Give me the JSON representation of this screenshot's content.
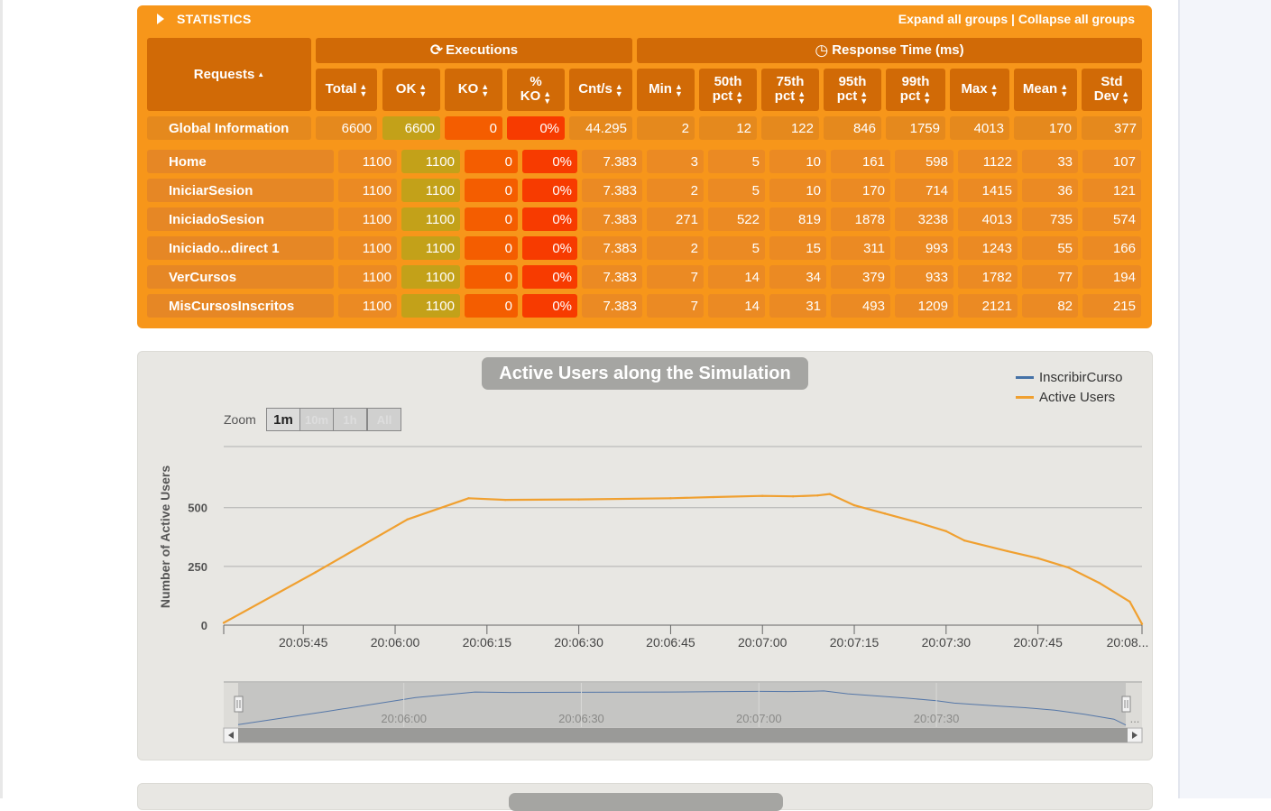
{
  "stats": {
    "title": "STATISTICS",
    "expand_label": "Expand all groups",
    "separator": "|",
    "collapse_label": "Collapse all groups",
    "groups": {
      "executions": "Executions",
      "response_time": "Response Time (ms)"
    },
    "requests_header": "Requests",
    "columns": {
      "total": "Total",
      "ok": "OK",
      "ko": "KO",
      "pko_1": "%",
      "pko_2": "KO",
      "cnt": "Cnt/s",
      "min": "Min",
      "p50_1": "50th",
      "p50_2": "pct",
      "p75_1": "75th",
      "p75_2": "pct",
      "p95_1": "95th",
      "p95_2": "pct",
      "p99_1": "99th",
      "p99_2": "pct",
      "max": "Max",
      "mean": "Mean",
      "std_1": "Std",
      "std_2": "Dev"
    },
    "global": {
      "name": "Global Information",
      "total": "6600",
      "ok": "6600",
      "ko": "0",
      "pko": "0%",
      "cnt": "44.295",
      "min": "2",
      "p50": "12",
      "p75": "122",
      "p95": "846",
      "p99": "1759",
      "max": "4013",
      "mean": "170",
      "std": "377"
    },
    "rows": [
      {
        "name": "Home",
        "total": "1100",
        "ok": "1100",
        "ko": "0",
        "pko": "0%",
        "cnt": "7.383",
        "min": "3",
        "p50": "5",
        "p75": "10",
        "p95": "161",
        "p99": "598",
        "max": "1122",
        "mean": "33",
        "std": "107"
      },
      {
        "name": "IniciarSesion",
        "total": "1100",
        "ok": "1100",
        "ko": "0",
        "pko": "0%",
        "cnt": "7.383",
        "min": "2",
        "p50": "5",
        "p75": "10",
        "p95": "170",
        "p99": "714",
        "max": "1415",
        "mean": "36",
        "std": "121"
      },
      {
        "name": "IniciadoSesion",
        "total": "1100",
        "ok": "1100",
        "ko": "0",
        "pko": "0%",
        "cnt": "7.383",
        "min": "271",
        "p50": "522",
        "p75": "819",
        "p95": "1878",
        "p99": "3238",
        "max": "4013",
        "mean": "735",
        "std": "574"
      },
      {
        "name": "Iniciado...direct 1",
        "total": "1100",
        "ok": "1100",
        "ko": "0",
        "pko": "0%",
        "cnt": "7.383",
        "min": "2",
        "p50": "5",
        "p75": "15",
        "p95": "311",
        "p99": "993",
        "max": "1243",
        "mean": "55",
        "std": "166"
      },
      {
        "name": "VerCursos",
        "total": "1100",
        "ok": "1100",
        "ko": "0",
        "pko": "0%",
        "cnt": "7.383",
        "min": "7",
        "p50": "14",
        "p75": "34",
        "p95": "379",
        "p99": "933",
        "max": "1782",
        "mean": "77",
        "std": "194"
      },
      {
        "name": "MisCursosInscritos",
        "total": "1100",
        "ok": "1100",
        "ko": "0",
        "pko": "0%",
        "cnt": "7.383",
        "min": "7",
        "p50": "14",
        "p75": "31",
        "p95": "493",
        "p99": "1209",
        "max": "2121",
        "mean": "82",
        "std": "215"
      }
    ]
  },
  "chart": {
    "title": "Active Users along the Simulation",
    "zoom_label": "Zoom",
    "zoom_buttons": [
      "1m",
      "10m",
      "1h",
      "All"
    ],
    "colors": {
      "inscribir": "#4572a7",
      "active": "#f0a030",
      "axis": "#666666",
      "grid": "#b0b0b0"
    }
  },
  "chart_data": {
    "type": "line",
    "title": "Active Users along the Simulation",
    "ylabel": "Number of Active Users",
    "xlabel": "",
    "ylim": [
      0,
      760
    ],
    "yticks": [
      0,
      250,
      500
    ],
    "ytick_labels": [
      "0",
      "250",
      "500"
    ],
    "xticks": [
      "20:05:45",
      "20:06:00",
      "20:06:15",
      "20:06:30",
      "20:06:45",
      "20:07:00",
      "20:07:15",
      "20:07:30",
      "20:07:45",
      "20:08..."
    ],
    "legend": [
      "InscribirCurso",
      "Active Users"
    ],
    "legend_position": "top-right",
    "navigator_labels": [
      "20:06:00",
      "20:06:30",
      "20:07:00",
      "20:07:30",
      "..."
    ],
    "series": [
      {
        "name": "InscribirCurso",
        "x": [],
        "values": []
      },
      {
        "name": "Active Users",
        "x": [
          "20:05:32",
          "20:05:47",
          "20:06:02",
          "20:06:12",
          "20:06:18",
          "20:06:30",
          "20:06:45",
          "20:06:52",
          "20:07:00",
          "20:07:05",
          "20:07:09",
          "20:07:11",
          "20:07:15",
          "20:07:20",
          "20:07:25",
          "20:07:30",
          "20:07:33",
          "20:07:40",
          "20:07:45",
          "20:07:50",
          "20:07:55",
          "20:08:00",
          "20:08:02"
        ],
        "values": [
          10,
          225,
          450,
          540,
          533,
          535,
          540,
          545,
          550,
          548,
          552,
          558,
          510,
          475,
          440,
          400,
          360,
          315,
          285,
          245,
          180,
          100,
          5
        ]
      }
    ]
  }
}
